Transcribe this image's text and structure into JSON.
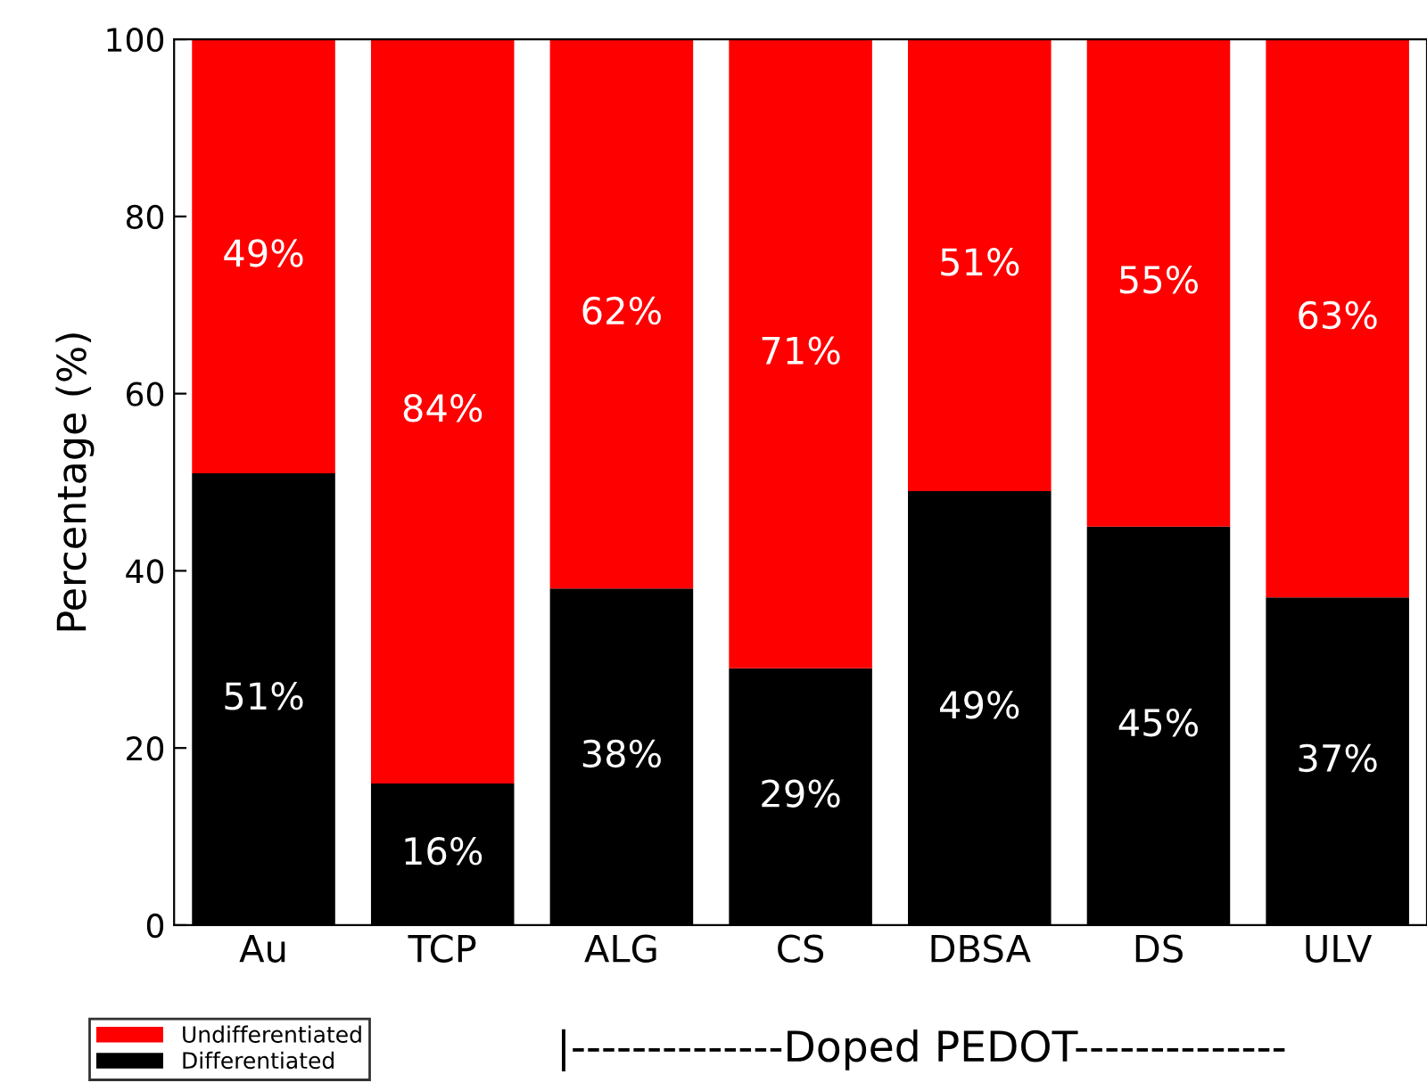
{
  "chart_data": {
    "type": "bar",
    "stacked": true,
    "ylabel": "Percentage (%)",
    "categories": [
      "Au",
      "TCP",
      "ALG",
      "CS",
      "DBSA",
      "DS",
      "ULV"
    ],
    "series": [
      {
        "name": "Differentiated",
        "color": "#000000",
        "values": [
          51,
          16,
          38,
          29,
          49,
          45,
          37
        ],
        "value_labels": [
          "51%",
          "16%",
          "38%",
          "29%",
          "49%",
          "45%",
          "37%"
        ]
      },
      {
        "name": "Undifferentiated",
        "color": "#ff0000",
        "values": [
          49,
          84,
          62,
          71,
          51,
          55,
          63
        ],
        "value_labels": [
          "49%",
          "84%",
          "62%",
          "71%",
          "51%",
          "55%",
          "63%"
        ]
      }
    ],
    "ylim": [
      0,
      100
    ],
    "yticks": [
      0,
      20,
      40,
      60,
      80,
      100
    ],
    "legend": "bottom left",
    "annotations": [
      "|--------------Doped PEDOT--------------"
    ]
  }
}
